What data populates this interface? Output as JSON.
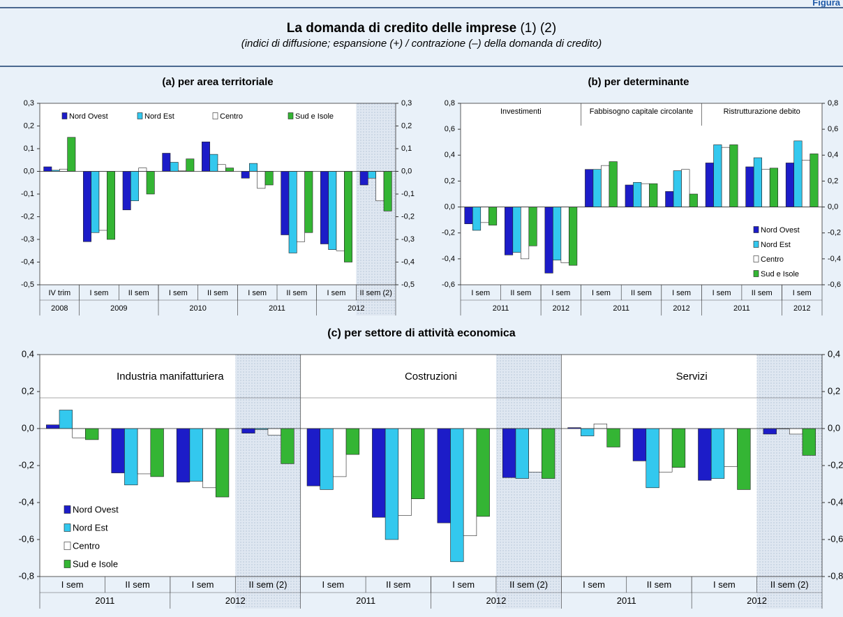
{
  "figure": {
    "label": "Figura",
    "title": "La domanda di credito delle imprese",
    "title_notes": "(1) (2)",
    "subtitle": "(indici di diffusione; espansione (+) / contrazione (–) della domanda di credito)"
  },
  "chart_data": [
    {
      "type": "bar",
      "title": "(a) per area territoriale",
      "categories": [
        "IV trim",
        "I sem",
        "II sem",
        "I sem",
        "II sem",
        "I sem",
        "II sem",
        "I sem",
        "II sem (2)"
      ],
      "years": [
        "2008",
        "2009",
        null,
        "2010",
        null,
        "2011",
        null,
        "2012",
        null
      ],
      "shaded": [
        false,
        false,
        false,
        false,
        false,
        false,
        false,
        false,
        true
      ],
      "series": [
        {
          "name": "Nord Ovest",
          "color": "#1c1cc8",
          "values": [
            0.02,
            -0.31,
            -0.17,
            0.08,
            0.13,
            -0.03,
            -0.28,
            -0.32,
            -0.06
          ]
        },
        {
          "name": "Nord Est",
          "color": "#33c8ee",
          "values": [
            0.005,
            -0.27,
            -0.13,
            0.04,
            0.075,
            0.035,
            -0.36,
            -0.345,
            -0.03
          ]
        },
        {
          "name": "Centro",
          "color": "#ffffff",
          "values": [
            0.01,
            -0.26,
            0.015,
            0.002,
            0.03,
            -0.075,
            -0.31,
            -0.35,
            -0.13
          ]
        },
        {
          "name": "Sud e Isole",
          "color": "#34b534",
          "values": [
            0.15,
            -0.3,
            -0.1,
            0.055,
            0.015,
            -0.06,
            -0.27,
            -0.4,
            -0.175
          ]
        }
      ],
      "ylim": [
        -0.5,
        0.3
      ],
      "yticks": [
        {
          "value": -0.5,
          "label": "-0,5"
        },
        {
          "value": -0.4,
          "label": "-0,4"
        },
        {
          "value": -0.3,
          "label": "-0,3"
        },
        {
          "value": -0.2,
          "label": "-0,2"
        },
        {
          "value": -0.1,
          "label": "-0,1"
        },
        {
          "value": 0,
          "label": "0,0"
        },
        {
          "value": 0.1,
          "label": "0,1"
        },
        {
          "value": 0.2,
          "label": "0,2"
        },
        {
          "value": 0.3,
          "label": "0,3"
        }
      ],
      "legend": "top",
      "right_axis": true
    },
    {
      "type": "bar",
      "title": "(b) per determinante",
      "categories": [
        "I sem",
        "II sem",
        "I sem",
        "I sem",
        "II sem",
        "I sem",
        "I sem",
        "II sem",
        "I sem"
      ],
      "years": [
        "2011",
        null,
        "2012",
        "2011",
        null,
        "2012",
        "2011",
        null,
        "2012"
      ],
      "sections": [
        "Investimenti",
        null,
        null,
        "Fabbisogno capitale circolante",
        null,
        null,
        "Ristrutturazione debito",
        null,
        null
      ],
      "series": [
        {
          "name": "Nord Ovest",
          "color": "#1c1cc8",
          "values": [
            -0.13,
            -0.37,
            -0.51,
            0.29,
            0.17,
            0.12,
            0.34,
            0.31,
            0.34
          ]
        },
        {
          "name": "Nord Est",
          "color": "#33c8ee",
          "values": [
            -0.18,
            -0.35,
            -0.41,
            0.29,
            0.19,
            0.28,
            0.48,
            0.38,
            0.51
          ]
        },
        {
          "name": "Centro",
          "color": "#ffffff",
          "values": [
            -0.12,
            -0.4,
            -0.43,
            0.32,
            0.18,
            0.29,
            0.46,
            0.29,
            0.36
          ]
        },
        {
          "name": "Sud e Isole",
          "color": "#34b534",
          "values": [
            -0.14,
            -0.3,
            -0.45,
            0.35,
            0.18,
            0.1,
            0.48,
            0.3,
            0.41
          ]
        }
      ],
      "ylim": [
        -0.6,
        0.8
      ],
      "yticks": [
        {
          "value": -0.6,
          "label": "-0,6"
        },
        {
          "value": -0.4,
          "label": "-0,4"
        },
        {
          "value": -0.2,
          "label": "-0,2"
        },
        {
          "value": 0,
          "label": "0,0"
        },
        {
          "value": 0.2,
          "label": "0,2"
        },
        {
          "value": 0.4,
          "label": "0,4"
        },
        {
          "value": 0.6,
          "label": "0,6"
        },
        {
          "value": 0.8,
          "label": "0,8"
        }
      ],
      "legend": "bottom-right",
      "right_axis": true
    },
    {
      "type": "bar",
      "title": "(c) per settore di attività economica",
      "categories": [
        "I sem",
        "II sem",
        "I sem",
        "II sem (2)",
        "I sem",
        "II sem",
        "I sem",
        "II sem (2)",
        "I sem",
        "II sem",
        "I sem",
        "II sem (2)"
      ],
      "years": [
        "2011",
        null,
        "2012",
        null,
        "2011",
        null,
        "2012",
        null,
        "2011",
        null,
        "2012",
        null
      ],
      "sections": [
        "Industria manifatturiera",
        null,
        null,
        null,
        "Costruzioni",
        null,
        null,
        null,
        "Servizi",
        null,
        null,
        null
      ],
      "shaded": [
        false,
        false,
        false,
        true,
        false,
        false,
        false,
        true,
        false,
        false,
        false,
        true
      ],
      "series": [
        {
          "name": "Nord Ovest",
          "color": "#1c1cc8",
          "values": [
            0.02,
            -0.24,
            -0.29,
            -0.025,
            -0.31,
            -0.48,
            -0.51,
            -0.265,
            0.005,
            -0.175,
            -0.28,
            -0.03
          ]
        },
        {
          "name": "Nord Est",
          "color": "#33c8ee",
          "values": [
            0.1,
            -0.305,
            -0.285,
            -0.005,
            -0.33,
            -0.6,
            -0.72,
            -0.27,
            -0.04,
            -0.32,
            -0.27,
            0.0
          ]
        },
        {
          "name": "Centro",
          "color": "#ffffff",
          "values": [
            -0.05,
            -0.245,
            -0.32,
            -0.035,
            -0.26,
            -0.47,
            -0.58,
            -0.235,
            0.025,
            -0.235,
            -0.205,
            -0.03
          ]
        },
        {
          "name": "Sud e Isole",
          "color": "#34b534",
          "values": [
            -0.06,
            -0.26,
            -0.37,
            -0.19,
            -0.14,
            -0.38,
            -0.475,
            -0.27,
            -0.1,
            -0.21,
            -0.33,
            -0.145
          ]
        }
      ],
      "ylim": [
        -0.8,
        0.4
      ],
      "yticks": [
        {
          "value": -0.8,
          "label": "-0,8"
        },
        {
          "value": -0.6,
          "label": "-0,6"
        },
        {
          "value": -0.4,
          "label": "-0,4"
        },
        {
          "value": -0.2,
          "label": "-0,2"
        },
        {
          "value": 0,
          "label": "0,0"
        },
        {
          "value": 0.2,
          "label": "0,2"
        },
        {
          "value": 0.4,
          "label": "0,4"
        }
      ],
      "legend": "bottom-left",
      "right_axis": true
    }
  ]
}
